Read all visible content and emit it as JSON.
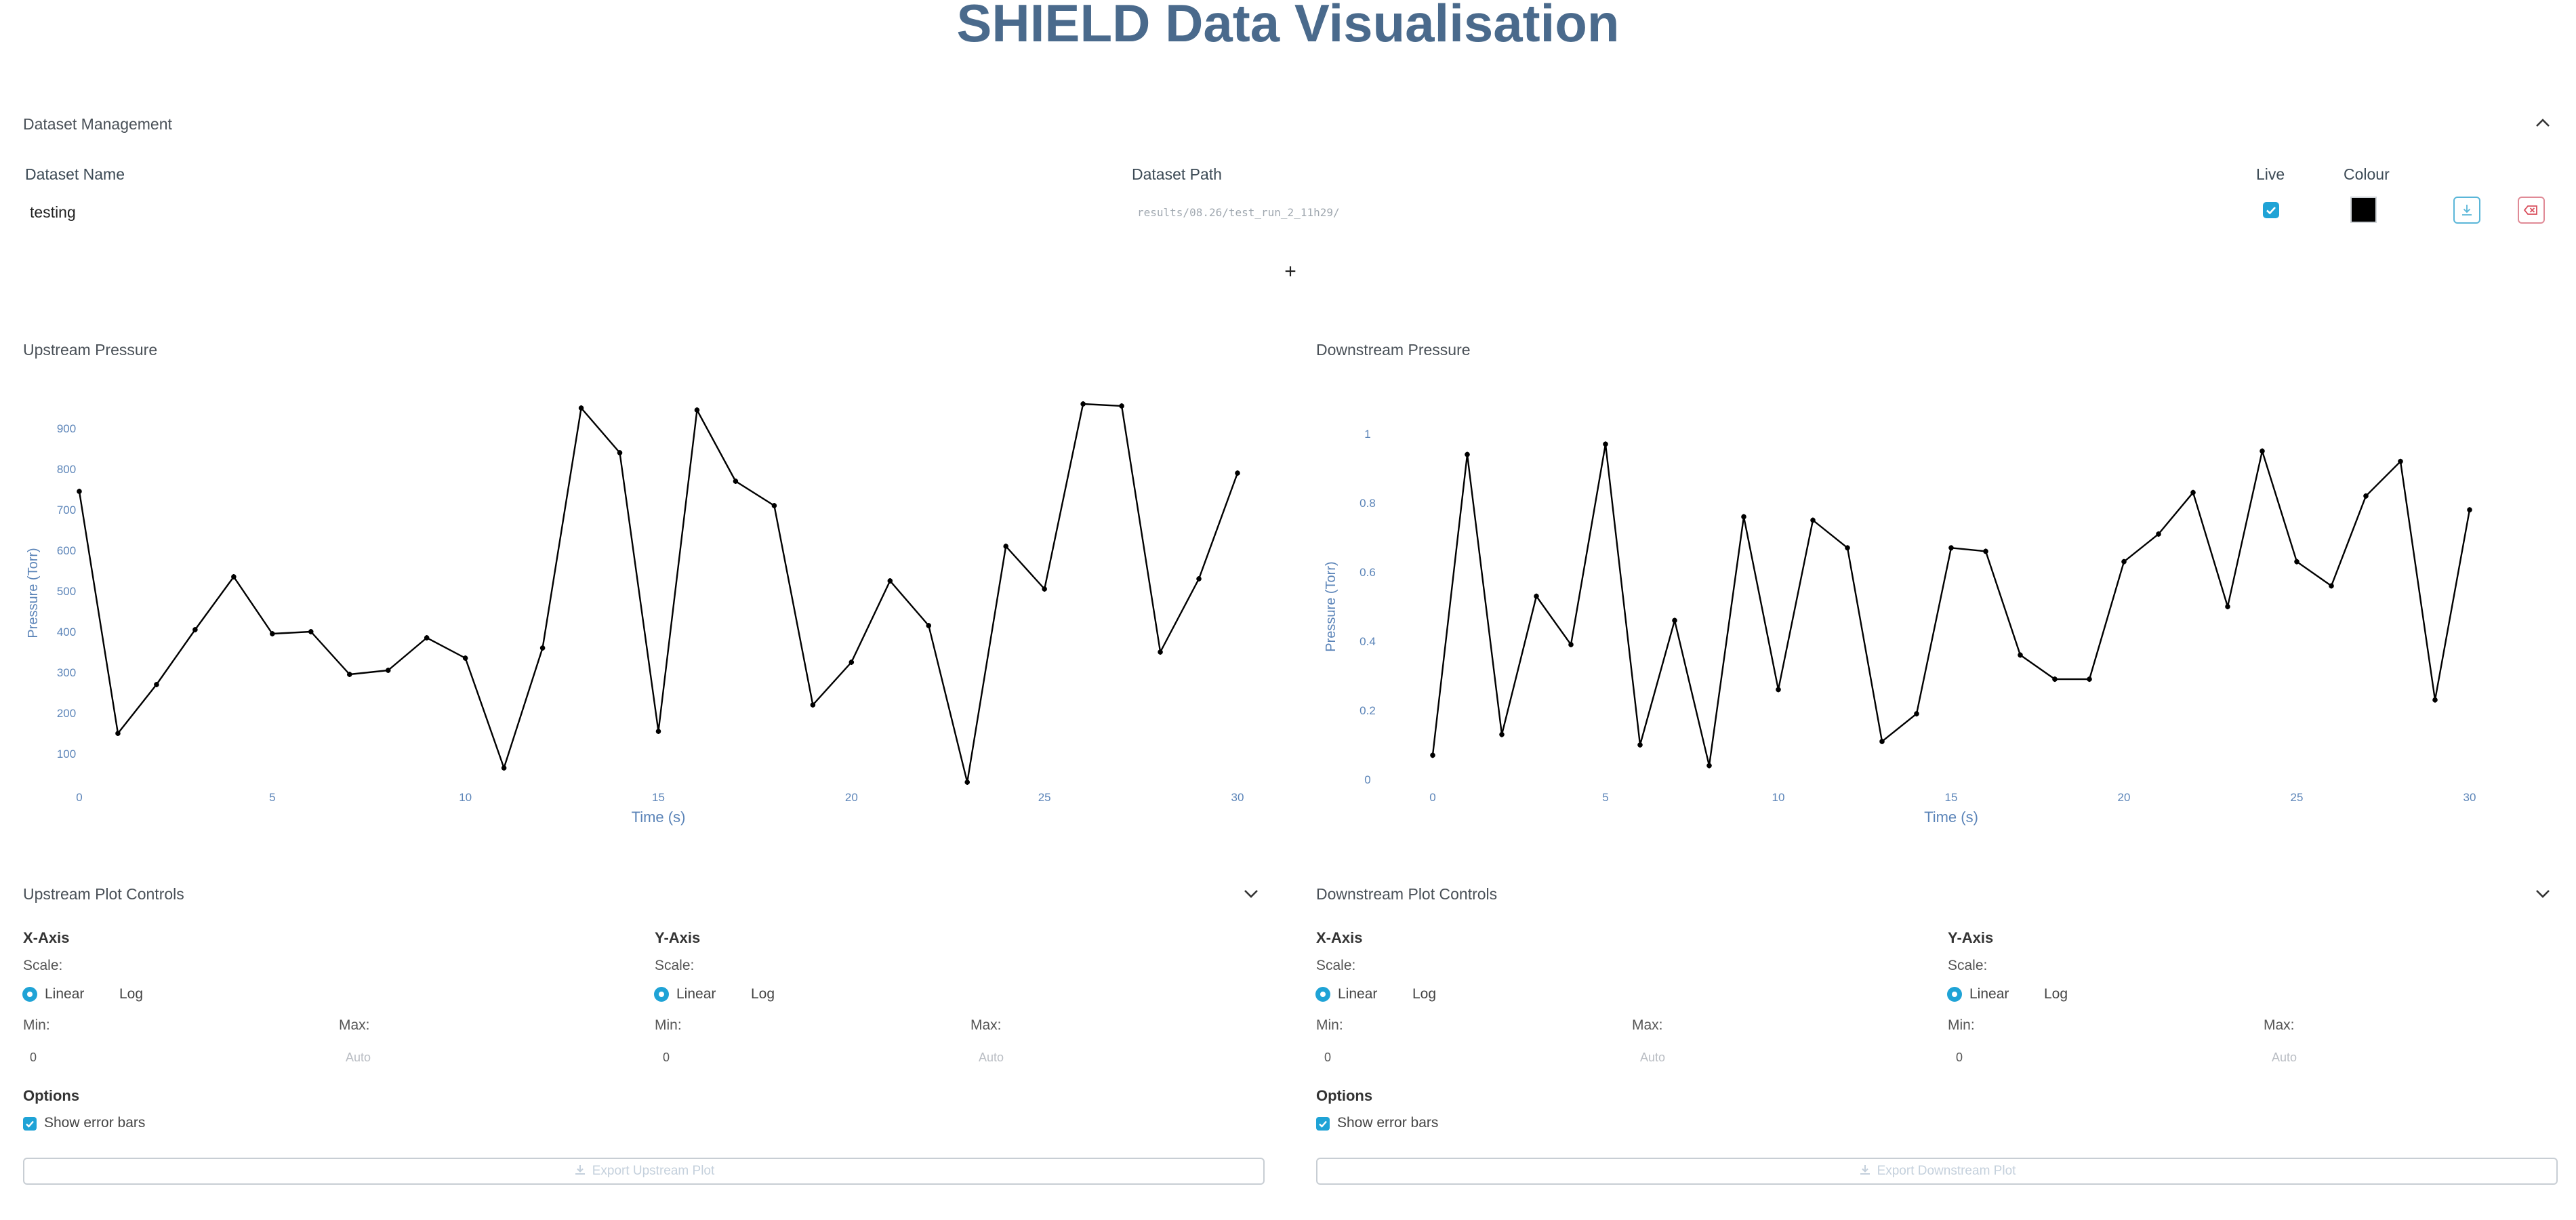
{
  "page_title": "SHIELD Data Visualisation",
  "dataset_management": {
    "title": "Dataset Management",
    "columns": {
      "name": "Dataset Name",
      "path": "Dataset Path",
      "live": "Live",
      "colour": "Colour"
    },
    "rows": [
      {
        "name": "testing",
        "path": "results/08.26/test_run_2_11h29/",
        "live": true,
        "colour": "#000000"
      }
    ],
    "add_label": "+"
  },
  "upstream": {
    "title": "Upstream Pressure",
    "controls": {
      "title": "Upstream Plot Controls",
      "x_axis": {
        "heading": "X-Axis",
        "scale_label": "Scale:",
        "linear": "Linear",
        "log": "Log",
        "min_label": "Min:",
        "max_label": "Max:",
        "min_value": "0",
        "max_placeholder": "Auto"
      },
      "y_axis": {
        "heading": "Y-Axis",
        "scale_label": "Scale:",
        "linear": "Linear",
        "log": "Log",
        "min_label": "Min:",
        "max_label": "Max:",
        "min_value": "0",
        "max_placeholder": "Auto"
      },
      "options_heading": "Options",
      "error_bars_label": "Show error bars",
      "export_label": "Export Upstream Plot"
    }
  },
  "downstream": {
    "title": "Downstream Pressure",
    "controls": {
      "title": "Downstream Plot Controls",
      "x_axis": {
        "heading": "X-Axis",
        "scale_label": "Scale:",
        "linear": "Linear",
        "log": "Log",
        "min_label": "Min:",
        "max_label": "Max:",
        "min_value": "0",
        "max_placeholder": "Auto"
      },
      "y_axis": {
        "heading": "Y-Axis",
        "scale_label": "Scale:",
        "linear": "Linear",
        "log": "Log",
        "min_label": "Min:",
        "max_label": "Max:",
        "min_value": "0",
        "max_placeholder": "Auto"
      },
      "options_heading": "Options",
      "error_bars_label": "Show error bars",
      "export_label": "Export Downstream Plot"
    }
  },
  "colors": {
    "accent": "#1fa3d6",
    "title": "#4a6a8c",
    "axis": "#5b84b8",
    "series": "#000000",
    "remove": "#e08a96"
  },
  "chart_data": [
    {
      "type": "line",
      "title": "Upstream Pressure",
      "xlabel": "Time (s)",
      "ylabel": "Pressure (Torr)",
      "x_ticks": [
        0,
        5,
        10,
        15,
        20,
        25,
        30
      ],
      "y_ticks": [
        100,
        200,
        300,
        400,
        500,
        600,
        700,
        800,
        900
      ],
      "xlim": [
        0,
        30
      ],
      "ylim": [
        20,
        970
      ],
      "grid": false,
      "series": [
        {
          "x": [
            0,
            1,
            2,
            3,
            4,
            5,
            6,
            7,
            8,
            9,
            10,
            11,
            12,
            13,
            14,
            15,
            16,
            17,
            18,
            19,
            20,
            21,
            22,
            23,
            24,
            25,
            26,
            27,
            28,
            29,
            30
          ],
          "y": [
            745,
            150,
            270,
            405,
            535,
            395,
            400,
            295,
            305,
            385,
            335,
            65,
            360,
            950,
            840,
            155,
            945,
            770,
            710,
            220,
            325,
            525,
            415,
            30,
            610,
            505,
            960,
            955,
            350,
            530,
            790
          ]
        }
      ]
    },
    {
      "type": "line",
      "title": "Downstream Pressure",
      "xlabel": "Time (s)",
      "ylabel": "Pressure (Torr)",
      "x_ticks": [
        0,
        5,
        10,
        15,
        20,
        25,
        30
      ],
      "y_ticks": [
        0,
        0.2,
        0.4,
        0.6,
        0.8,
        1
      ],
      "xlim": [
        0,
        30
      ],
      "ylim": [
        0,
        1
      ],
      "grid": false,
      "series": [
        {
          "x": [
            0,
            1,
            2,
            3,
            4,
            5,
            6,
            7,
            8,
            9,
            10,
            11,
            12,
            13,
            14,
            15,
            16,
            17,
            18,
            19,
            20,
            21,
            22,
            23,
            24,
            25,
            26,
            27,
            28,
            29,
            30
          ],
          "y": [
            0.07,
            0.94,
            0.13,
            0.53,
            0.39,
            0.97,
            0.1,
            0.46,
            0.04,
            0.76,
            0.26,
            0.75,
            0.67,
            0.11,
            0.19,
            0.67,
            0.66,
            0.36,
            0.29,
            0.29,
            0.63,
            0.71,
            0.83,
            0.5,
            0.95,
            0.63,
            0.56,
            0.82,
            0.92,
            0.23,
            0.78
          ]
        }
      ]
    }
  ]
}
